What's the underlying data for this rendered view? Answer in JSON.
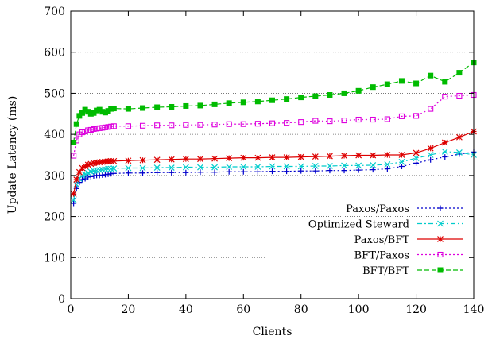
{
  "chart_data": {
    "type": "line",
    "title": "",
    "xlabel": "Clients",
    "ylabel": "Update Latency (ms)",
    "xlim": [
      0,
      140
    ],
    "ylim": [
      0,
      700
    ],
    "xticks": [
      0,
      20,
      40,
      60,
      80,
      100,
      120,
      140
    ],
    "yticks": [
      0,
      100,
      200,
      300,
      400,
      500,
      600,
      700
    ],
    "grid": "dotted horizontal",
    "legend_position": "bottom-right",
    "series": [
      {
        "name": "Paxos/Paxos",
        "color": "#0000cc",
        "dash": "2,3",
        "marker": "plus",
        "x": [
          1,
          2,
          3,
          4,
          5,
          6,
          7,
          8,
          9,
          10,
          11,
          12,
          13,
          14,
          15,
          20,
          25,
          30,
          35,
          40,
          45,
          50,
          55,
          60,
          65,
          70,
          75,
          80,
          85,
          90,
          95,
          100,
          105,
          110,
          115,
          120,
          125,
          130,
          135,
          140
        ],
        "y": [
          232,
          268,
          283,
          290,
          292,
          296,
          297,
          299,
          300,
          300,
          301,
          302,
          303,
          304,
          305,
          306,
          306,
          307,
          307,
          307,
          308,
          308,
          309,
          309,
          309,
          310,
          310,
          311,
          311,
          312,
          312,
          313,
          314,
          316,
          322,
          330,
          338,
          345,
          352,
          357
        ]
      },
      {
        "name": "Optimized Steward",
        "color": "#00cccc",
        "dash": "6,3,2,3",
        "marker": "x",
        "x": [
          1,
          2,
          3,
          4,
          5,
          6,
          7,
          8,
          9,
          10,
          11,
          12,
          13,
          14,
          15,
          20,
          25,
          30,
          35,
          40,
          45,
          50,
          55,
          60,
          65,
          70,
          75,
          80,
          85,
          90,
          95,
          100,
          105,
          110,
          115,
          120,
          125,
          130,
          135,
          140
        ],
        "y": [
          240,
          278,
          292,
          300,
          303,
          306,
          309,
          311,
          312,
          313,
          314,
          315,
          316,
          316,
          317,
          318,
          318,
          319,
          319,
          320,
          320,
          320,
          321,
          321,
          321,
          322,
          322,
          322,
          323,
          323,
          324,
          324,
          325,
          327,
          333,
          342,
          350,
          358,
          356,
          350
        ]
      },
      {
        "name": "Paxos/BFT",
        "color": "#dd0000",
        "dash": "",
        "marker": "star",
        "x": [
          1,
          2,
          3,
          4,
          5,
          6,
          7,
          8,
          9,
          10,
          11,
          12,
          13,
          14,
          15,
          20,
          25,
          30,
          35,
          40,
          45,
          50,
          55,
          60,
          65,
          70,
          75,
          80,
          85,
          90,
          95,
          100,
          105,
          110,
          115,
          120,
          125,
          130,
          135,
          140
        ],
        "y": [
          255,
          290,
          308,
          318,
          322,
          326,
          328,
          330,
          331,
          332,
          333,
          334,
          334,
          335,
          335,
          336,
          337,
          338,
          339,
          340,
          340,
          341,
          342,
          343,
          343,
          344,
          344,
          345,
          346,
          347,
          348,
          349,
          349,
          350,
          350,
          355,
          366,
          380,
          393,
          407
        ]
      },
      {
        "name": "BFT/Paxos",
        "color": "#dd00dd",
        "dash": "2,3",
        "marker": "square",
        "x": [
          1,
          2,
          3,
          4,
          5,
          6,
          7,
          8,
          9,
          10,
          11,
          12,
          13,
          14,
          15,
          20,
          25,
          30,
          35,
          40,
          45,
          50,
          55,
          60,
          65,
          70,
          75,
          80,
          85,
          90,
          95,
          100,
          105,
          110,
          115,
          120,
          125,
          130,
          135,
          140
        ],
        "y": [
          348,
          385,
          400,
          405,
          407,
          410,
          411,
          413,
          414,
          415,
          416,
          417,
          418,
          419,
          420,
          420,
          421,
          422,
          422,
          423,
          423,
          424,
          425,
          425,
          426,
          427,
          428,
          430,
          433,
          432,
          434,
          436,
          436,
          437,
          444,
          445,
          462,
          492,
          494,
          496
        ]
      },
      {
        "name": "BFT/BFT",
        "color": "#00bb00",
        "dash": "6,3",
        "marker": "filled-square",
        "x": [
          1,
          2,
          3,
          4,
          5,
          6,
          7,
          8,
          9,
          10,
          11,
          12,
          13,
          14,
          15,
          20,
          25,
          30,
          35,
          40,
          45,
          50,
          55,
          60,
          65,
          70,
          75,
          80,
          85,
          90,
          95,
          100,
          105,
          110,
          115,
          120,
          125,
          130,
          135,
          140
        ],
        "y": [
          380,
          425,
          445,
          452,
          460,
          455,
          450,
          452,
          458,
          460,
          455,
          453,
          457,
          462,
          463,
          462,
          464,
          466,
          467,
          469,
          470,
          473,
          476,
          478,
          480,
          483,
          486,
          490,
          493,
          496,
          500,
          506,
          515,
          522,
          530,
          524,
          543,
          528,
          550,
          575
        ]
      }
    ]
  }
}
